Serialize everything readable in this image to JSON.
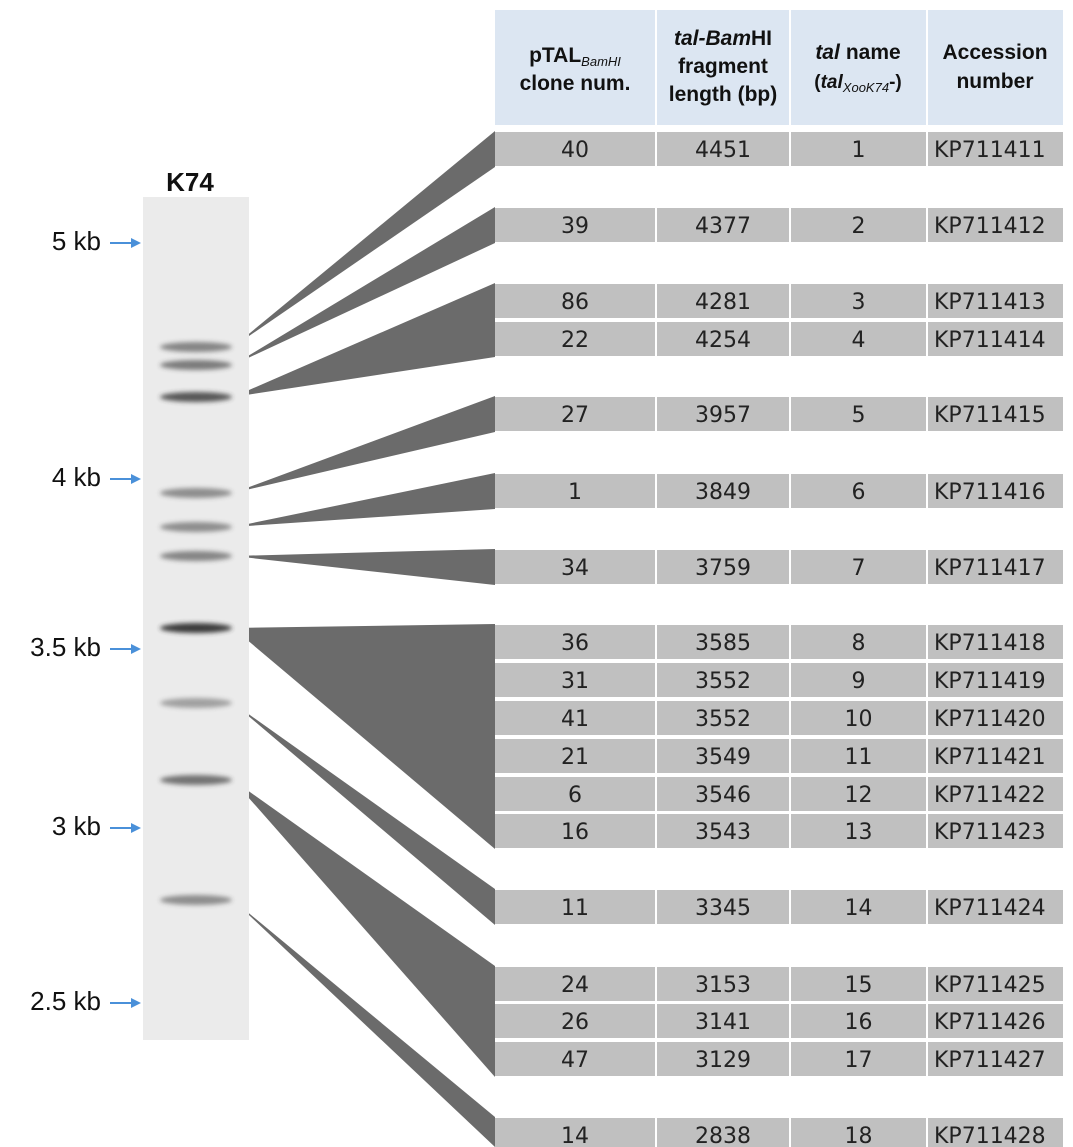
{
  "gel": {
    "lane_label": "K74",
    "markers": [
      "5 kb",
      "4 kb",
      "3.5 kb",
      "3 kb",
      "2.5 kb"
    ]
  },
  "table": {
    "header": [
      {
        "main": "pTAL",
        "subscript": "BamHI",
        "line2": "clone num."
      },
      {
        "italic": "tal-Bam",
        "rest": "HI",
        "line2": "fragment",
        "line3": "length (bp)"
      },
      {
        "italic": "tal",
        "rest": "name",
        "open": "(",
        "italic2": "tal",
        "subscript": "XooK74",
        "close": "-)"
      },
      {
        "line1": "Accession",
        "line2": "number"
      }
    ],
    "rows": [
      [
        40,
        4451,
        1,
        "KP711411"
      ],
      [
        39,
        4377,
        2,
        "KP711412"
      ],
      [
        86,
        4281,
        3,
        "KP711413"
      ],
      [
        22,
        4254,
        4,
        "KP711414"
      ],
      [
        27,
        3957,
        5,
        "KP711415"
      ],
      [
        1,
        3849,
        6,
        "KP711416"
      ],
      [
        34,
        3759,
        7,
        "KP711417"
      ],
      [
        36,
        3585,
        8,
        "KP711418"
      ],
      [
        31,
        3552,
        9,
        "KP711419"
      ],
      [
        41,
        3552,
        10,
        "KP711420"
      ],
      [
        21,
        3549,
        11,
        "KP711421"
      ],
      [
        6,
        3546,
        12,
        "KP711422"
      ],
      [
        16,
        3543,
        13,
        "KP711423"
      ],
      [
        11,
        3345,
        14,
        "KP711424"
      ],
      [
        24,
        3153,
        15,
        "KP711425"
      ],
      [
        26,
        3141,
        16,
        "KP711426"
      ],
      [
        47,
        3129,
        17,
        "KP711427"
      ],
      [
        14,
        2838,
        18,
        "KP711428"
      ]
    ]
  }
}
